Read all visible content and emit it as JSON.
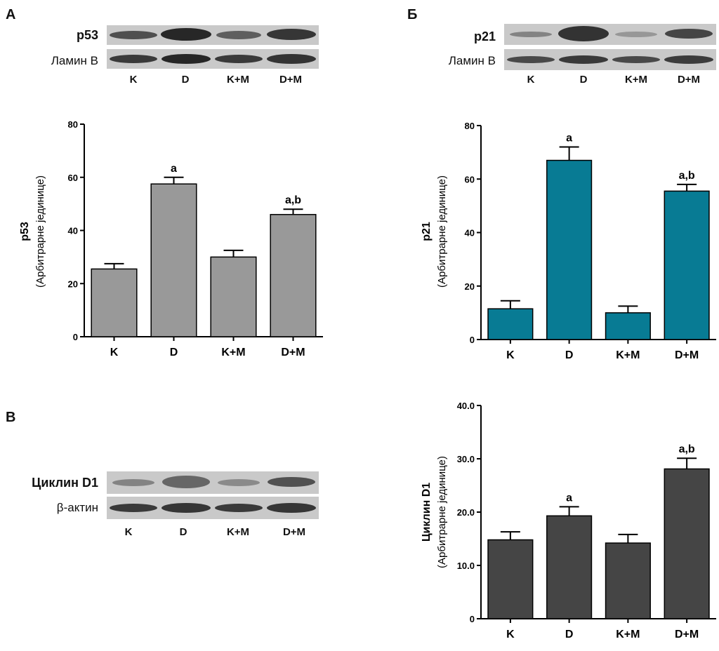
{
  "panels": {
    "a": {
      "letter": "A"
    },
    "b_cyr": {
      "letter": "Б"
    },
    "v": {
      "letter": "B"
    }
  },
  "blots": {
    "p53": {
      "label": "p53",
      "loading_label": "Ламин B",
      "lanes": [
        "K",
        "D",
        "K+M",
        "D+M"
      ]
    },
    "p21": {
      "label": "p21",
      "loading_label": "Ламин B",
      "lanes": [
        "K",
        "D",
        "K+M",
        "D+M"
      ]
    },
    "cyclin": {
      "label": "Циклин D1",
      "loading_label": "β-актин",
      "lanes": [
        "K",
        "D",
        "K+M",
        "D+M"
      ]
    }
  },
  "chart_data": [
    {
      "type": "bar",
      "id": "p53",
      "categories": [
        "K",
        "D",
        "K+M",
        "D+M"
      ],
      "values": [
        25.5,
        57.5,
        30,
        46
      ],
      "errors": [
        2,
        2.5,
        2.5,
        2
      ],
      "annotations": [
        "",
        "a",
        "",
        "a,b"
      ],
      "ylabel": "p53",
      "ylabel_sub": "(Арбитрарне јединице)",
      "ylim": [
        0,
        80
      ],
      "yticks": [
        0,
        20,
        40,
        60,
        80
      ],
      "color": "#999999"
    },
    {
      "type": "bar",
      "id": "p21",
      "categories": [
        "K",
        "D",
        "K+M",
        "D+M"
      ],
      "values": [
        11.5,
        67,
        10,
        55.5
      ],
      "errors": [
        3,
        5,
        2.5,
        2.5
      ],
      "annotations": [
        "",
        "a",
        "",
        "a,b"
      ],
      "ylabel": "p21",
      "ylabel_sub": "(Арбитрарне јединице)",
      "ylim": [
        0,
        80
      ],
      "yticks": [
        0,
        20,
        40,
        60,
        80
      ],
      "color": "#087b94"
    },
    {
      "type": "bar",
      "id": "cyclin",
      "categories": [
        "K",
        "D",
        "K+M",
        "D+M"
      ],
      "values": [
        14.8,
        19.3,
        14.2,
        28.1
      ],
      "errors": [
        1.5,
        1.7,
        1.6,
        2
      ],
      "annotations": [
        "",
        "a",
        "",
        "a,b"
      ],
      "ylabel": "Циклин D1",
      "ylabel_sub": "(Арбитрарне јединице)",
      "ylim": [
        0,
        40
      ],
      "yticks": [
        0,
        10,
        20,
        30,
        40
      ],
      "yticklabels": [
        "0",
        "10.0",
        "20.0",
        "30.0",
        "40.0"
      ],
      "color": "#454545"
    }
  ]
}
